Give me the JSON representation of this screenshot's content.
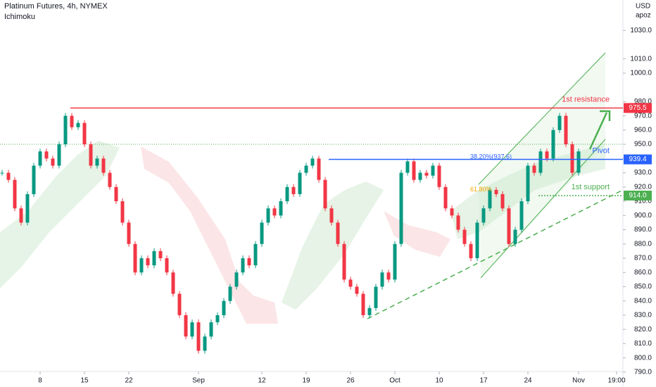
{
  "chart_data": {
    "type": "candlestick",
    "title": "Platinum Futures, 4h, NYMEX",
    "subtitle": "Ichimoku",
    "currency": "USD",
    "author": "apoz",
    "xlim": [
      1,
      98
    ],
    "xticks": [
      {
        "value": 7,
        "label": "8"
      },
      {
        "value": 14,
        "label": "15"
      },
      {
        "value": 21,
        "label": "22"
      },
      {
        "value": 32,
        "label": "Sep"
      },
      {
        "value": 42,
        "label": "12"
      },
      {
        "value": 49,
        "label": "19"
      },
      {
        "value": 56,
        "label": "26"
      },
      {
        "value": 63,
        "label": "Oct"
      },
      {
        "value": 70,
        "label": "10"
      },
      {
        "value": 77,
        "label": "17"
      },
      {
        "value": 84,
        "label": "24"
      },
      {
        "value": 92,
        "label": "Nov"
      },
      {
        "value": 98,
        "label": "19:00"
      }
    ],
    "ylim": [
      785,
      1038
    ],
    "yticks": [
      {
        "value": 790,
        "label": "790.0"
      },
      {
        "value": 800,
        "label": "800.0"
      },
      {
        "value": 810,
        "label": "810.0"
      },
      {
        "value": 820,
        "label": "820.0"
      },
      {
        "value": 830,
        "label": "830.0"
      },
      {
        "value": 840,
        "label": "840.0"
      },
      {
        "value": 850,
        "label": "850.0"
      },
      {
        "value": 860,
        "label": "860.0"
      },
      {
        "value": 870,
        "label": "870.0"
      },
      {
        "value": 880,
        "label": "880.0"
      },
      {
        "value": 890,
        "label": "890.0"
      },
      {
        "value": 900,
        "label": "900.0"
      },
      {
        "value": 910,
        "label": "910.0"
      },
      {
        "value": 920,
        "label": "920.0"
      },
      {
        "value": 930,
        "label": "930.0"
      },
      {
        "value": 940,
        "label": "940.0"
      },
      {
        "value": 950,
        "label": "950.0"
      },
      {
        "value": 960,
        "label": "960.0"
      },
      {
        "value": 970,
        "label": "970.0"
      },
      {
        "value": 980,
        "label": "980.0"
      },
      {
        "value": 1000,
        "label": "1000.0"
      },
      {
        "value": 1010,
        "label": "1010.0"
      },
      {
        "value": 1030,
        "label": "1030.0"
      }
    ],
    "up_color": "#089981",
    "down_color": "#f23645",
    "x": [
      1,
      2,
      3,
      4,
      5,
      6,
      7,
      8,
      9,
      10,
      11,
      12,
      13,
      14,
      15,
      16,
      17,
      18,
      19,
      20,
      21,
      22,
      23,
      24,
      25,
      26,
      27,
      28,
      29,
      30,
      31,
      32,
      33,
      34,
      35,
      36,
      37,
      38,
      39,
      40,
      41,
      42,
      43,
      44,
      45,
      46,
      47,
      48,
      49,
      50,
      51,
      52,
      53,
      54,
      55,
      56,
      57,
      58,
      59,
      60,
      61,
      62,
      63,
      64,
      65,
      66,
      67,
      68,
      69,
      70,
      71,
      72,
      73,
      74,
      75,
      76,
      77,
      78,
      79,
      80,
      81,
      82,
      83,
      84,
      85,
      86,
      87,
      88,
      89,
      90,
      91,
      92
    ],
    "series": [
      {
        "name": "Close",
        "values": [
          930,
          925,
          905,
          895,
          915,
          935,
          945,
          940,
          935,
          950,
          970,
          962,
          965,
          950,
          935,
          940,
          930,
          920,
          910,
          895,
          880,
          860,
          870,
          865,
          875,
          870,
          860,
          845,
          830,
          815,
          825,
          805,
          815,
          825,
          830,
          840,
          850,
          860,
          870,
          865,
          880,
          895,
          905,
          900,
          910,
          920,
          915,
          930,
          935,
          940,
          925,
          905,
          895,
          880,
          855,
          850,
          845,
          830,
          835,
          850,
          860,
          855,
          880,
          930,
          938,
          925,
          930,
          928,
          935,
          920,
          905,
          900,
          890,
          880,
          870,
          895,
          905,
          918,
          915,
          905,
          880,
          890,
          910,
          935,
          930,
          945,
          940,
          960,
          970,
          950,
          930,
          945
        ]
      }
    ],
    "levels": [
      {
        "name": "1st resistance",
        "value": 975.5,
        "color": "#f23645"
      },
      {
        "name": "Pivot",
        "value": 939.4,
        "color": "#2962ff"
      },
      {
        "name": "1st support",
        "value": 914,
        "value_label": "914.0",
        "color": "#4caf50"
      }
    ],
    "fib_labels": [
      "38.20%(937.6)",
      "61.80%"
    ]
  }
}
